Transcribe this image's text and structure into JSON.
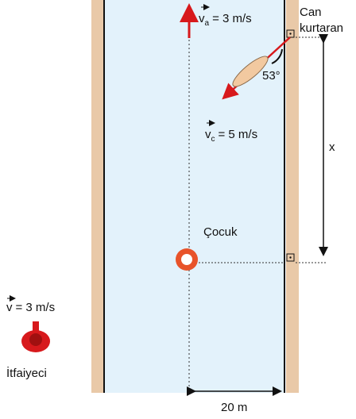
{
  "rescuer": {
    "label_line1": "Can",
    "label_line2": "kurtaran"
  },
  "current_velocity": {
    "symbol": "v",
    "subscript": "a",
    "value": "= 3 m/s"
  },
  "rescuer_velocity": {
    "symbol": "v",
    "subscript": "c",
    "value": "= 5 m/s"
  },
  "angle": "53°",
  "distance_label": "x",
  "child": "Çocuk",
  "firefighter": {
    "symbol": "v",
    "value": "= 3 m/s",
    "label": "İtfaiyeci"
  },
  "river_width": "20 m"
}
